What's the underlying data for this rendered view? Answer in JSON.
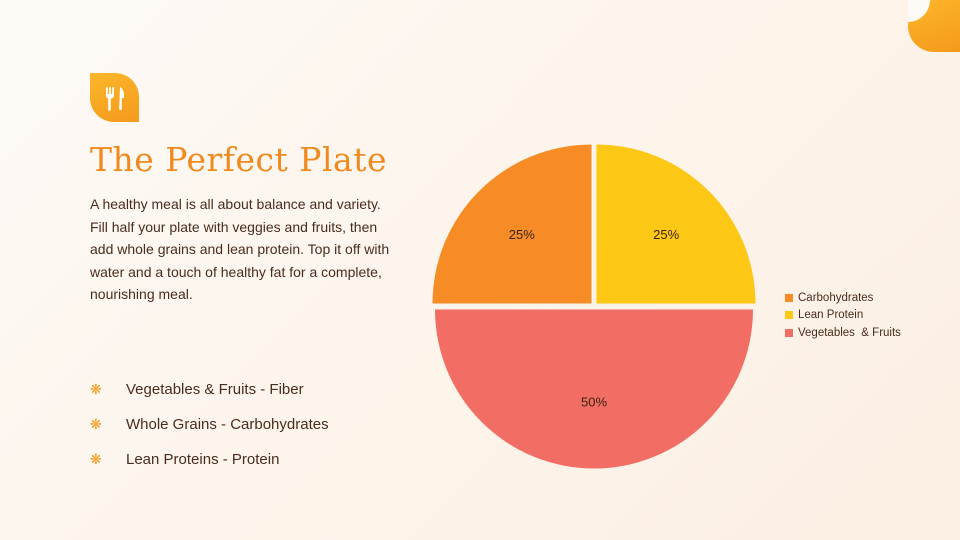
{
  "slide": {
    "title": "The Perfect Plate",
    "description": "A healthy meal is all about balance and variety. Fill half your plate with veggies and fruits, then add whole grains and lean protein. Top it off with water and a touch of healthy fat for a complete, nourishing meal.",
    "bullets": [
      {
        "text": "Vegetables & Fruits - Fiber",
        "icon": "asterisk-flower-icon"
      },
      {
        "text": "Whole Grains - Carbohydrates",
        "icon": "asterisk-flower-icon"
      },
      {
        "text": "Lean Proteins - Protein",
        "icon": "asterisk-flower-icon"
      }
    ],
    "logo_icon": "fork-knife-icon"
  },
  "colors": {
    "accent_orange": "#F08A1F",
    "badge_orange": "#F9A825",
    "text_brown": "#4A2C1C"
  },
  "chart_data": {
    "type": "pie",
    "slices": [
      {
        "label": "Carbohydrates",
        "value": 25,
        "data_label": "25%",
        "color": "#F78C27"
      },
      {
        "label": "Lean Protein",
        "value": 25,
        "data_label": "25%",
        "color": "#FDC716"
      },
      {
        "label": "Vegetables & Fruits",
        "value": 50,
        "data_label": "50%",
        "color": "#F26D63"
      }
    ],
    "exploded": true,
    "legend": {
      "position": "right",
      "entries": [
        "Carbohydrates",
        "Lean Protein",
        "Vegetables  & Fruits"
      ]
    }
  }
}
